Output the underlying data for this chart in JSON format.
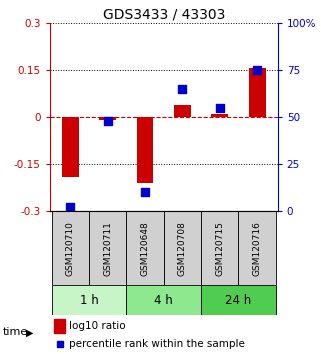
{
  "title": "GDS3433 / 43303",
  "samples": [
    "GSM120710",
    "GSM120711",
    "GSM120648",
    "GSM120708",
    "GSM120715",
    "GSM120716"
  ],
  "log10_ratio": [
    -0.19,
    -0.01,
    -0.21,
    0.04,
    0.01,
    0.155
  ],
  "percentile_rank": [
    2,
    48,
    10,
    65,
    55,
    75
  ],
  "ylim_left": [
    -0.3,
    0.3
  ],
  "ylim_right": [
    0,
    100
  ],
  "yticks_left": [
    -0.3,
    -0.15,
    0,
    0.15,
    0.3
  ],
  "yticks_right": [
    0,
    25,
    50,
    75,
    100
  ],
  "ytick_labels_left": [
    "-0.3",
    "-0.15",
    "0",
    "0.15",
    "0.3"
  ],
  "ytick_labels_right": [
    "0",
    "25",
    "50",
    "75",
    "100%"
  ],
  "time_groups": [
    {
      "label": "1 h",
      "samples": [
        0,
        1
      ],
      "color": "#c8f5c8"
    },
    {
      "label": "4 h",
      "samples": [
        2,
        3
      ],
      "color": "#8ee88e"
    },
    {
      "label": "24 h",
      "samples": [
        4,
        5
      ],
      "color": "#50cc50"
    }
  ],
  "bar_color": "#cc0000",
  "point_color": "#0000cc",
  "grid_color": "#000000",
  "zero_line_color": "#cc0000",
  "bg_color": "#ffffff",
  "plot_bg_color": "#ffffff",
  "sample_box_color": "#d0d0d0",
  "legend_bar_label": "log10 ratio",
  "legend_point_label": "percentile rank within the sample",
  "time_label": "time",
  "bar_width": 0.45,
  "point_size": 40,
  "title_fontsize": 10,
  "tick_fontsize": 7.5,
  "sample_fontsize": 6.5,
  "time_fontsize": 8.5,
  "legend_fontsize": 7.5
}
